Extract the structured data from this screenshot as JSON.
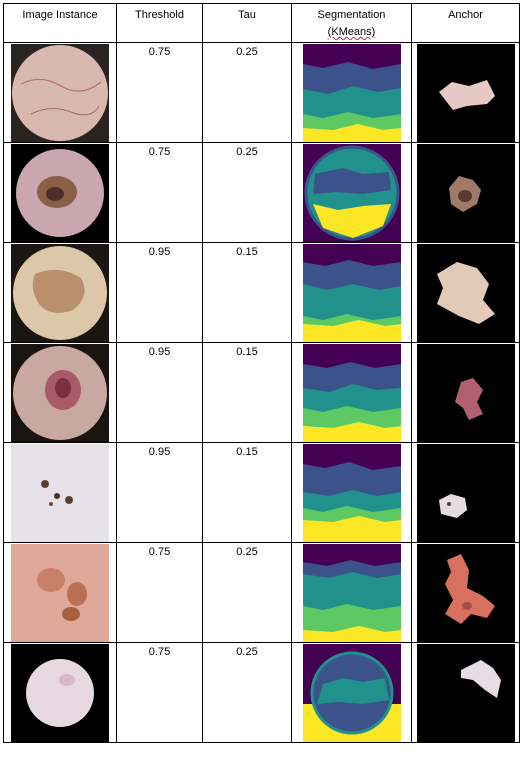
{
  "table": {
    "headers": {
      "image": "Image Instance",
      "threshold": "Threshold",
      "tau": "Tau",
      "segmentation": "Segmentation",
      "segmentation_sub": "(KMeans)",
      "anchor": "Anchor"
    },
    "rows": [
      {
        "threshold": "0.75",
        "tau": "0.25"
      },
      {
        "threshold": "0.75",
        "tau": "0.25"
      },
      {
        "threshold": "0.95",
        "tau": "0.15"
      },
      {
        "threshold": "0.95",
        "tau": "0.15"
      },
      {
        "threshold": "0.95",
        "tau": "0.15"
      },
      {
        "threshold": "0.75",
        "tau": "0.25"
      },
      {
        "threshold": "0.75",
        "tau": "0.25"
      }
    ]
  },
  "palette": {
    "viridis_purple": "#440154",
    "viridis_blue": "#3b528b",
    "viridis_teal": "#21918c",
    "viridis_green": "#5ec962",
    "viridis_yellow": "#fde725",
    "anchor_bg": "#000000"
  }
}
